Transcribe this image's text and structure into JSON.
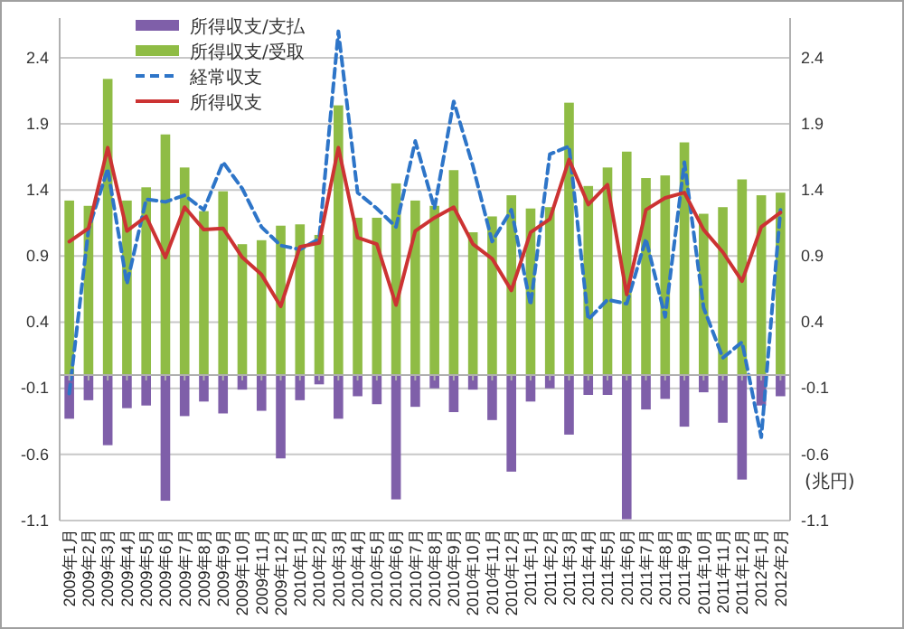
{
  "chart_data": {
    "type": "bar",
    "stacked": true,
    "categories": [
      "2009年1月",
      "2009年2月",
      "2009年3月",
      "2009年4月",
      "2009年5月",
      "2009年6月",
      "2009年7月",
      "2009年8月",
      "2009年9月",
      "2009年10月",
      "2009年11月",
      "2009年12月",
      "2010年1月",
      "2010年2月",
      "2010年3月",
      "2010年4月",
      "2010年5月",
      "2010年6月",
      "2010年7月",
      "2010年8月",
      "2010年9月",
      "2010年10月",
      "2010年11月",
      "2010年12月",
      "2011年1月",
      "2011年2月",
      "2011年3月",
      "2011年4月",
      "2011年5月",
      "2011年6月",
      "2011年7月",
      "2011年8月",
      "2011年9月",
      "2011年10月",
      "2011年11月",
      "2011年12月",
      "2012年1月",
      "2012年2月"
    ],
    "series": [
      {
        "name": "所得収支/支払",
        "color": "#7f5fa9",
        "values": [
          -0.33,
          -0.19,
          -0.53,
          -0.25,
          -0.23,
          -0.95,
          -0.31,
          -0.2,
          -0.29,
          -0.11,
          -0.27,
          -0.63,
          -0.19,
          -0.07,
          -0.33,
          -0.16,
          -0.22,
          -0.94,
          -0.24,
          -0.1,
          -0.28,
          -0.11,
          -0.34,
          -0.73,
          -0.2,
          -0.1,
          -0.45,
          -0.15,
          -0.15,
          -1.09,
          -0.26,
          -0.18,
          -0.39,
          -0.13,
          -0.36,
          -0.79,
          -0.23,
          -0.16
        ]
      },
      {
        "name": "所得収支/受取",
        "color": "#8fbc45",
        "values": [
          1.32,
          1.28,
          2.24,
          1.32,
          1.42,
          1.82,
          1.57,
          1.24,
          1.39,
          0.99,
          1.02,
          1.13,
          1.14,
          1.06,
          2.04,
          1.19,
          1.19,
          1.45,
          1.32,
          1.28,
          1.55,
          1.08,
          1.2,
          1.36,
          1.26,
          1.27,
          2.06,
          1.43,
          1.57,
          1.69,
          1.49,
          1.51,
          1.76,
          1.22,
          1.27,
          1.48,
          1.36,
          1.38
        ]
      },
      {
        "name": "経常収支",
        "type": "line",
        "line_style": "dashed",
        "color": "#2e75c8",
        "values": [
          -0.14,
          1.1,
          1.56,
          0.69,
          1.33,
          1.31,
          1.36,
          1.25,
          1.61,
          1.41,
          1.12,
          0.98,
          0.95,
          1.03,
          2.6,
          1.38,
          1.26,
          1.12,
          1.77,
          1.26,
          2.07,
          1.58,
          1.01,
          1.25,
          0.53,
          1.67,
          1.73,
          0.42,
          0.57,
          0.54,
          1.03,
          0.44,
          1.61,
          0.51,
          0.13,
          0.25,
          -0.47,
          1.25
        ]
      },
      {
        "name": "所得収支",
        "type": "line",
        "line_style": "solid",
        "color": "#cc3333",
        "values": [
          1.01,
          1.11,
          1.72,
          1.09,
          1.2,
          0.89,
          1.27,
          1.1,
          1.11,
          0.89,
          0.76,
          0.52,
          0.97,
          1.0,
          1.72,
          1.04,
          0.99,
          0.53,
          1.09,
          1.19,
          1.27,
          0.99,
          0.88,
          0.64,
          1.08,
          1.18,
          1.63,
          1.29,
          1.44,
          0.61,
          1.25,
          1.34,
          1.38,
          1.1,
          0.93,
          0.71,
          1.12,
          1.23
        ]
      }
    ],
    "ylim": [
      -1.1,
      2.7
    ],
    "yticks": [
      -1.1,
      -0.6,
      -0.1,
      0.4,
      0.9,
      1.4,
      1.9,
      2.4
    ],
    "y2lim": [
      -1.1,
      2.7
    ],
    "y2ticks": [
      -1.1,
      -0.6,
      -0.1,
      0.4,
      0.9,
      1.4,
      1.9,
      2.4
    ],
    "y2label": "(兆円)",
    "grid": "y",
    "legend": "top left"
  }
}
